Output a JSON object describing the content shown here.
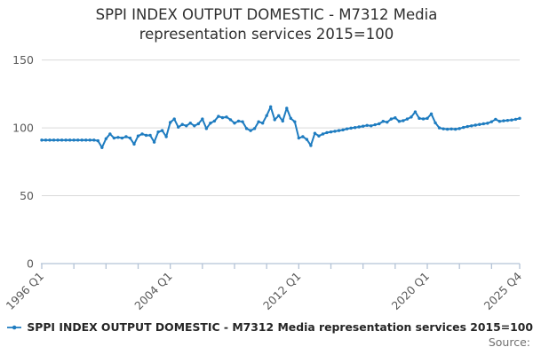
{
  "title": {
    "line1": "SPPI INDEX OUTPUT DOMESTIC - M7312 Media",
    "line2": "representation services 2015=100"
  },
  "legend": {
    "label": "SPPI INDEX OUTPUT DOMESTIC - M7312 Media representation services 2015=100"
  },
  "source_label": "Source:",
  "colors": {
    "line": "#1e7cc0",
    "grid": "#d9d9d9",
    "axis": "#b4c3d6",
    "tick_text": "#5a5a5a"
  },
  "chart_data": {
    "type": "line",
    "title": "SPPI INDEX OUTPUT DOMESTIC - M7312 Media representation services 2015=100",
    "xlabel": "",
    "ylabel": "",
    "ylim": [
      0,
      150
    ],
    "yticks": [
      0,
      50,
      100,
      150
    ],
    "grid": true,
    "legend_position": "bottom",
    "marker": "dot",
    "start_quarter": "1996 Q1",
    "end_quarter": "2025 Q4",
    "x_tick_minor_every_quarters": 8,
    "x_ticks": [
      {
        "index": 0,
        "label": "1996 Q1"
      },
      {
        "index": 32,
        "label": "2004 Q1"
      },
      {
        "index": 64,
        "label": "2012 Q1"
      },
      {
        "index": 96,
        "label": "2020 Q1"
      },
      {
        "index": 119,
        "label": "2025 Q4"
      }
    ],
    "values": [
      91,
      91,
      91,
      91,
      91,
      91,
      91,
      91,
      91,
      91,
      91,
      91,
      91,
      91,
      90.5,
      85.5,
      92,
      95.5,
      92.5,
      93,
      92.5,
      93.5,
      92.5,
      88,
      94,
      95.5,
      94.5,
      94.5,
      89.5,
      97,
      98,
      93.5,
      104,
      106.5,
      100.5,
      102.5,
      101.5,
      103.5,
      101.5,
      103,
      106.5,
      99.5,
      103.5,
      105,
      108.5,
      107.5,
      108,
      106,
      103.5,
      105,
      104.5,
      99.5,
      98,
      99.5,
      104.5,
      103.5,
      109,
      115.5,
      106,
      109,
      105,
      114.5,
      107,
      104.5,
      92.5,
      93.5,
      91.5,
      87,
      96,
      94,
      95.5,
      96.5,
      97,
      97.5,
      98,
      98.5,
      99.3,
      99.8,
      100.2,
      100.7,
      101.2,
      101.8,
      101.5,
      102.3,
      103,
      104.8,
      104.2,
      106.5,
      107.4,
      104.8,
      105.3,
      106.5,
      108,
      111.8,
      107,
      106.6,
      107,
      110.3,
      103.7,
      100,
      99.3,
      99,
      99.2,
      99,
      99.5,
      100.3,
      101,
      101.5,
      102,
      102.5,
      103,
      103.4,
      104.5,
      106.3,
      104.8,
      105.2,
      105.5,
      105.8,
      106.3,
      107
    ]
  }
}
